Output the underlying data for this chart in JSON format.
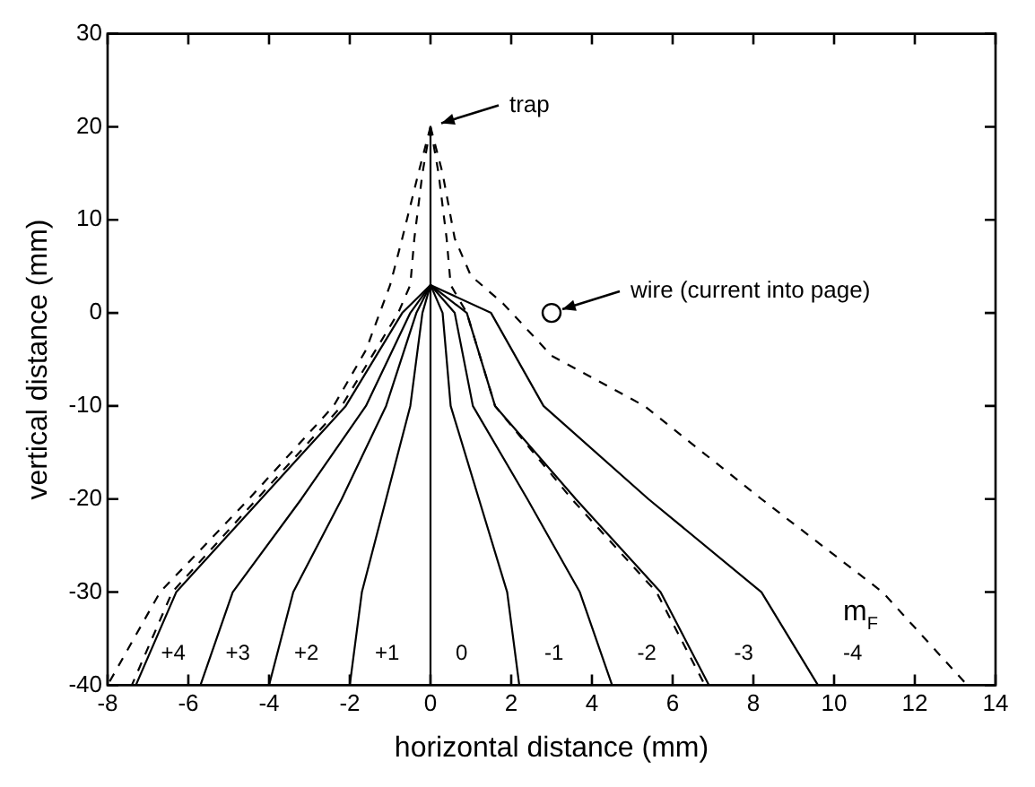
{
  "chart_data": {
    "type": "line",
    "xlabel": "horizontal distance (mm)",
    "ylabel": "vertical distance (mm)",
    "legend_title": "m$_{F}$",
    "xlim": [
      -8,
      14
    ],
    "xticks": [
      -8,
      -6,
      -4,
      -2,
      0,
      2,
      4,
      6,
      8,
      10,
      12,
      14
    ],
    "ylim": [
      -40,
      30
    ],
    "yticks": [
      -40,
      -30,
      -20,
      -10,
      0,
      10,
      20,
      30
    ],
    "grid": false,
    "legend": false,
    "marker": "none",
    "line_style": "solid",
    "series": [
      {
        "name": "+4",
        "color": "#000000",
        "x": [
          0,
          -0.7,
          -2.1,
          -4.2,
          -6.3,
          -7.3
        ],
        "values": [
          3,
          0,
          -10,
          -20,
          -30,
          -40
        ]
      },
      {
        "name": "+3",
        "color": "#000000",
        "x": [
          0,
          -0.5,
          -1.6,
          -3.2,
          -4.9,
          -5.7
        ],
        "values": [
          3,
          0,
          -10,
          -20,
          -30,
          -40
        ]
      },
      {
        "name": "+2",
        "color": "#000000",
        "x": [
          0,
          -0.35,
          -1.1,
          -2.2,
          -3.4,
          -4.0
        ],
        "values": [
          3,
          0,
          -10,
          -20,
          -30,
          -40
        ]
      },
      {
        "name": "+1",
        "color": "#000000",
        "x": [
          0,
          -0.2,
          -0.5,
          -1.1,
          -1.7,
          -2.0
        ],
        "values": [
          3,
          0,
          -10,
          -20,
          -30,
          -40
        ]
      },
      {
        "name": "0",
        "color": "#000000",
        "x": [
          0,
          0,
          0,
          0,
          0,
          0,
          0,
          0
        ],
        "values": [
          20,
          8,
          3,
          0,
          -10,
          -20,
          -30,
          -40
        ]
      },
      {
        "name": "-1",
        "color": "#000000",
        "x": [
          0,
          0.3,
          0.5,
          1.2,
          1.9,
          2.2
        ],
        "values": [
          3,
          0,
          -10,
          -20,
          -30,
          -40
        ]
      },
      {
        "name": "-2",
        "color": "#000000",
        "x": [
          0,
          0.6,
          1.05,
          2.4,
          3.7,
          4.5
        ],
        "values": [
          3,
          0,
          -10,
          -20,
          -30,
          -40
        ]
      },
      {
        "name": "-3",
        "color": "#000000",
        "x": [
          0,
          0.9,
          1.6,
          3.6,
          5.7,
          6.9
        ],
        "values": [
          3,
          0,
          -10,
          -20,
          -30,
          -40
        ]
      },
      {
        "name": "-4",
        "color": "#000000",
        "x": [
          0,
          1.5,
          2.8,
          5.4,
          8.2,
          9.6
        ],
        "values": [
          3,
          0,
          -10,
          -20,
          -30,
          -40
        ]
      },
      {
        "color": "#000000",
        "line_style": "dashed",
        "x": [
          0,
          -0.3,
          -0.7,
          -1.0,
          -1.6,
          -2.4,
          -4.5,
          -6.7,
          -8.0
        ],
        "values": [
          20,
          15,
          8,
          3,
          -4,
          -10,
          -20,
          -30,
          -40
        ]
      },
      {
        "color": "#000000",
        "line_style": "dashed",
        "x": [
          0,
          -0.2,
          -0.4,
          -0.5,
          -0.8,
          -2.2,
          -4.3,
          -6.4,
          -7.4
        ],
        "values": [
          20,
          15,
          8,
          3,
          0,
          -10,
          -20,
          -30,
          -40
        ]
      },
      {
        "color": "#000000",
        "line_style": "dashed",
        "x": [
          0,
          0.2,
          0.4,
          0.5,
          0.9,
          1.6,
          3.5,
          5.6,
          6.8
        ],
        "values": [
          20,
          15,
          8,
          3,
          0,
          -10,
          -20,
          -30,
          -40
        ]
      },
      {
        "color": "#000000",
        "line_style": "dashed",
        "x": [
          0,
          0.3,
          0.6,
          1.0,
          1.8,
          3.0,
          5.3,
          8.2,
          11.2,
          13.3
        ],
        "values": [
          20,
          15,
          8,
          4,
          1,
          -4.6,
          -10,
          -20,
          -30,
          -40
        ]
      },
      {
        "type": "scatter",
        "color": "#000000",
        "marker": "circle",
        "x": [
          3
        ],
        "values": [
          0
        ]
      }
    ],
    "annotations": [
      {
        "text": "trap",
        "x": 0,
        "y": 20
      },
      {
        "text": "wire (current into page)",
        "x": 3,
        "y": 0
      }
    ]
  }
}
